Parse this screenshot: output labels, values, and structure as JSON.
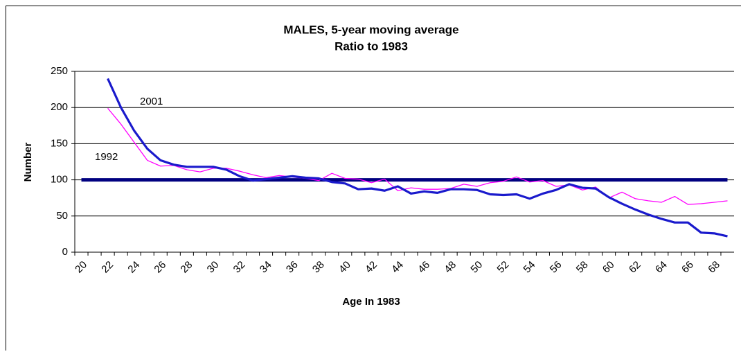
{
  "chart_data": {
    "type": "line",
    "title": "MALES, 5-year moving average",
    "subtitle": "Ratio to 1983",
    "y_label": "Number",
    "x_label": "Age In 1983",
    "categories": [
      "20",
      null,
      "22",
      null,
      "24",
      null,
      "26",
      null,
      "28",
      null,
      "30",
      null,
      "32",
      null,
      "34",
      null,
      "36",
      null,
      "38",
      null,
      "40",
      null,
      "42",
      null,
      "44",
      null,
      "46",
      null,
      "48",
      null,
      "50",
      null,
      "52",
      null,
      "54",
      null,
      "56",
      null,
      "58",
      null,
      "60",
      null,
      "62",
      null,
      "64",
      null,
      "66",
      null,
      "68",
      null
    ],
    "series": [
      {
        "color": "#000080",
        "values": [
          100,
          100,
          100,
          100,
          100,
          100,
          100,
          100,
          100,
          100,
          100,
          100,
          100,
          100,
          100,
          100,
          100,
          100,
          100,
          100,
          100,
          100,
          100,
          100,
          100,
          100,
          100,
          100,
          100,
          100,
          100,
          100,
          100,
          100,
          100,
          100,
          100,
          100,
          100,
          100,
          100,
          100,
          100,
          100,
          100,
          100,
          100,
          100,
          100,
          100
        ]
      },
      {
        "name": "1992",
        "color": "#ff00ff",
        "values": [
          null,
          null,
          199,
          177,
          152,
          127,
          119,
          120,
          114,
          111,
          116,
          116,
          112,
          107,
          103,
          106,
          104,
          102,
          99,
          109,
          102,
          101,
          96,
          101,
          85,
          89,
          87,
          87,
          88,
          94,
          91,
          96,
          98,
          104,
          97,
          99,
          91,
          93,
          86,
          90,
          75,
          83,
          74,
          71,
          69,
          77,
          66,
          67,
          69,
          71
        ]
      },
      {
        "name": "2001",
        "color": "#1a1acc",
        "values": [
          null,
          null,
          240,
          200,
          168,
          143,
          127,
          121,
          118,
          118,
          118,
          114,
          105,
          99,
          101,
          103,
          105,
          103,
          102,
          97,
          95,
          87,
          88,
          85,
          91,
          81,
          84,
          82,
          87,
          87,
          86,
          80,
          79,
          80,
          74,
          81,
          86,
          94,
          89,
          88,
          76,
          67,
          59,
          52,
          46,
          41,
          41,
          27,
          26,
          22
        ]
      }
    ],
    "ylim": [
      0,
      250
    ],
    "yticks": [
      0,
      50,
      100,
      150,
      200,
      250
    ],
    "grid": true
  }
}
